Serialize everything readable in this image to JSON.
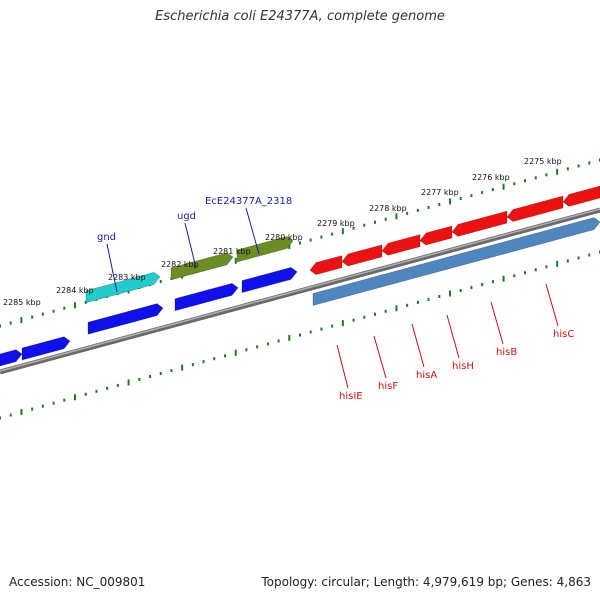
{
  "title": "Escherichia coli E24377A, complete genome",
  "footer": {
    "accession": "Accession: NC_009801",
    "stats": "Topology: circular; Length: 4,979,619 bp; Genes: 4,863"
  },
  "colors": {
    "backbone": "#8a8a8a",
    "tick": "#1f7a1f",
    "forward_gene": "#ee1111",
    "reverse_gene": "#1010ee",
    "his_operon": "#4f86c0",
    "gnd": "#22cccc",
    "ugd": "#6b8e23",
    "label_blue": "#1a1aaa",
    "label_red": "#cc1111"
  },
  "ruler_labels": [
    {
      "text": "2275 kbp",
      "kbp": 2275
    },
    {
      "text": "2276 kbp",
      "kbp": 2276
    },
    {
      "text": "2277 kbp",
      "kbp": 2277
    },
    {
      "text": "2278 kbp",
      "kbp": 2278
    },
    {
      "text": "2279 kbp",
      "kbp": 2279
    },
    {
      "text": "2280 kbp",
      "kbp": 2280
    },
    {
      "text": "2281 kbp",
      "kbp": 2281
    },
    {
      "text": "2282 kbp",
      "kbp": 2282
    },
    {
      "text": "2283 kbp",
      "kbp": 2283
    },
    {
      "text": "2284 kbp",
      "kbp": 2284
    },
    {
      "text": "2285 kbp",
      "kbp": 2285
    }
  ],
  "gene_labels_top": [
    {
      "text": "gnd",
      "color": "label_blue"
    },
    {
      "text": "ugd",
      "color": "label_blue"
    },
    {
      "text": "EcE24377A_2318",
      "color": "label_blue"
    }
  ],
  "gene_labels_bottom": [
    {
      "text": "hisIE",
      "color": "label_red"
    },
    {
      "text": "hisF",
      "color": "label_red"
    },
    {
      "text": "hisA",
      "color": "label_red"
    },
    {
      "text": "hisH",
      "color": "label_red"
    },
    {
      "text": "hisB",
      "color": "label_red"
    },
    {
      "text": "hisC",
      "color": "label_red"
    }
  ]
}
